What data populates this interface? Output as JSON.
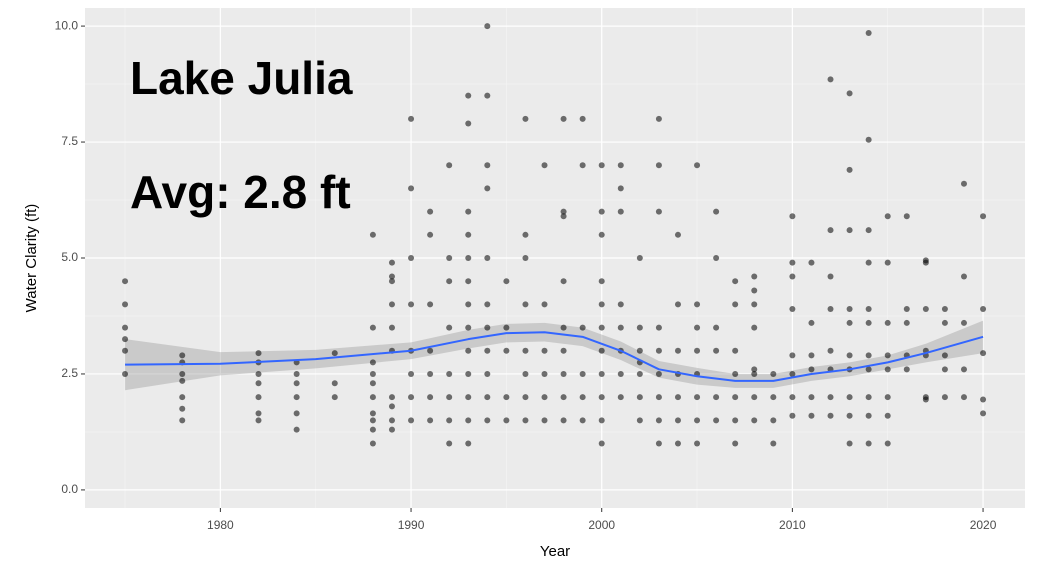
{
  "chart_data": {
    "type": "scatter",
    "xlabel": "Year",
    "ylabel": "Water Clarity (ft)",
    "annotations": [
      "Lake Julia",
      "Avg: 2.8 ft"
    ],
    "xlim": [
      1972.9,
      2022.2
    ],
    "ylim": [
      -0.39,
      10.39
    ],
    "xticks": [
      1980,
      1990,
      2000,
      2010,
      2020
    ],
    "yticks": [
      {
        "value": 0,
        "label": "0.0"
      },
      2.5,
      {
        "value": 5,
        "label": "5.0"
      },
      7.5,
      {
        "value": 10,
        "label": "10.0"
      }
    ],
    "grid": true,
    "color": "#000000",
    "smooth_color": "#3366ff",
    "band_color": "#999999",
    "x": [
      1975,
      1975,
      1975,
      1975,
      1975,
      1975,
      1978,
      1978,
      1978,
      1978,
      1978,
      1978,
      1978,
      1982,
      1982,
      1982,
      1982,
      1982,
      1982,
      1982,
      1984,
      1984,
      1984,
      1984,
      1984,
      1984,
      1986,
      1986,
      1986,
      1988,
      1988,
      1988,
      1988,
      1988,
      1988,
      1988,
      1988,
      1988,
      1988,
      1989,
      1989,
      1989,
      1989,
      1989,
      1989,
      1989,
      1989,
      1989,
      1989,
      1990,
      1990,
      1990,
      1990,
      1990,
      1990,
      1990,
      1990,
      1991,
      1991,
      1991,
      1991,
      1991,
      1991,
      1991,
      1992,
      1992,
      1992,
      1992,
      1992,
      1992,
      1992,
      1992,
      1993,
      1993,
      1993,
      1993,
      1993,
      1993,
      1993,
      1993,
      1993,
      1993,
      1993,
      1993,
      1993,
      1994,
      1994,
      1994,
      1994,
      1994,
      1994,
      1994,
      1994,
      1994,
      1994,
      1994,
      1995,
      1995,
      1995,
      1995,
      1995,
      1996,
      1996,
      1996,
      1996,
      1996,
      1996,
      1996,
      1996,
      1997,
      1997,
      1997,
      1997,
      1997,
      1997,
      1998,
      1998,
      1998,
      1998,
      1998,
      1998,
      1998,
      1998,
      1998,
      1999,
      1999,
      1999,
      1999,
      1999,
      1999,
      2000,
      2000,
      2000,
      2000,
      2000,
      2000,
      2000,
      2000,
      2000,
      2000,
      2000,
      2001,
      2001,
      2001,
      2001,
      2001,
      2001,
      2001,
      2001,
      2002,
      2002,
      2002,
      2002,
      2002,
      2002,
      2002,
      2003,
      2003,
      2003,
      2003,
      2003,
      2003,
      2003,
      2003,
      2003,
      2004,
      2004,
      2004,
      2004,
      2004,
      2004,
      2004,
      2005,
      2005,
      2005,
      2005,
      2005,
      2005,
      2005,
      2005,
      2006,
      2006,
      2006,
      2006,
      2006,
      2006,
      2007,
      2007,
      2007,
      2007,
      2007,
      2007,
      2007,
      2008,
      2008,
      2008,
      2008,
      2008,
      2008,
      2008,
      2008,
      2009,
      2009,
      2009,
      2009,
      2010,
      2010,
      2010,
      2010,
      2010,
      2010,
      2010,
      2010,
      2011,
      2011,
      2011,
      2011,
      2011,
      2011,
      2012,
      2012,
      2012,
      2012,
      2012,
      2012,
      2012,
      2012,
      2013,
      2013,
      2013,
      2013,
      2013,
      2013,
      2013,
      2013,
      2013,
      2013,
      2014,
      2014,
      2014,
      2014,
      2014,
      2014,
      2014,
      2014,
      2014,
      2014,
      2014,
      2015,
      2015,
      2015,
      2015,
      2015,
      2015,
      2015,
      2015,
      2016,
      2016,
      2016,
      2016,
      2016,
      2017,
      2017,
      2017,
      2017,
      2017,
      2017,
      2017,
      2018,
      2018,
      2018,
      2018,
      2018,
      2019,
      2019,
      2019,
      2019,
      2019,
      2020,
      2020,
      2020,
      2020,
      2020
    ],
    "y": [
      4.5,
      4,
      3.5,
      3.25,
      3,
      2.5,
      2.9,
      2.75,
      2.5,
      2.35,
      2,
      1.75,
      1.5,
      2.95,
      2.75,
      2.5,
      2.3,
      2,
      1.65,
      1.5,
      2.75,
      2.5,
      2.3,
      2,
      1.65,
      1.3,
      2.95,
      2.3,
      2,
      5.5,
      3.5,
      2.75,
      2.5,
      2.3,
      2,
      1.65,
      1.5,
      1.3,
      1,
      4.9,
      4.6,
      4.5,
      4,
      3.5,
      3,
      2,
      1.8,
      1.5,
      1.3,
      8,
      6.5,
      5,
      4,
      3,
      2.5,
      2,
      1.5,
      6,
      5.5,
      4,
      3,
      2.5,
      2,
      1.5,
      7,
      5,
      4.5,
      3.5,
      2.5,
      2,
      1.5,
      1,
      8.5,
      7.9,
      6,
      5.5,
      5,
      4.5,
      4,
      3.5,
      3,
      2.5,
      2,
      1.5,
      1,
      10,
      8.5,
      7,
      6.5,
      5,
      4,
      3.5,
      3,
      2.5,
      2,
      1.5,
      4.5,
      3.5,
      3,
      2,
      1.5,
      8,
      5.5,
      5,
      4,
      3,
      2.5,
      2,
      1.5,
      7,
      4,
      3,
      2.5,
      2,
      1.5,
      8,
      6,
      5.9,
      4.5,
      3.5,
      3,
      2.5,
      2,
      1.5,
      8,
      7,
      3.5,
      2.5,
      2,
      1.5,
      7,
      6,
      5.5,
      4.5,
      4,
      3.5,
      3,
      2.5,
      2,
      1.5,
      1,
      7,
      6.5,
      6,
      4,
      3.5,
      3,
      2.5,
      2,
      5,
      3.5,
      3,
      2.75,
      2.5,
      2,
      1.5,
      8,
      7,
      6,
      3.5,
      3,
      2.5,
      2,
      1.5,
      1,
      5.5,
      4,
      3,
      2.5,
      2,
      1.5,
      1,
      7,
      4,
      3.5,
      3,
      2.5,
      2,
      1.5,
      1,
      6,
      5,
      3.5,
      3,
      2,
      1.5,
      4.5,
      4,
      3,
      2.5,
      2,
      1.5,
      1,
      4.6,
      4.3,
      4,
      3.5,
      2.6,
      2.5,
      2,
      1.5,
      2.5,
      2,
      1.5,
      1,
      5.9,
      4.9,
      4.6,
      3.9,
      2.9,
      2.5,
      2,
      1.6,
      4.9,
      3.6,
      2.9,
      2.6,
      2,
      1.6,
      8.85,
      5.6,
      4.6,
      3.9,
      3,
      2.6,
      2,
      1.6,
      8.55,
      6.9,
      5.6,
      3.9,
      3.6,
      2.9,
      2.6,
      2,
      1.6,
      1,
      9.85,
      7.55,
      5.6,
      4.9,
      3.9,
      3.6,
      2.9,
      2.6,
      2,
      1.6,
      1,
      5.9,
      4.9,
      3.6,
      2.9,
      2.6,
      2,
      1.6,
      1,
      5.9,
      3.9,
      3.6,
      2.9,
      2.6,
      4.95,
      4.9,
      3.9,
      3,
      2.9,
      2,
      1.95,
      3.9,
      3.6,
      2.9,
      2.6,
      2,
      6.6,
      4.6,
      3.6,
      2.6,
      2,
      5.9,
      3.9,
      2.95,
      1.95,
      1.65
    ],
    "smooth": {
      "x": [
        1975,
        1980,
        1985,
        1990,
        1993,
        1995,
        1997,
        1999,
        2001,
        2003,
        2005,
        2007,
        2009,
        2011,
        2013,
        2015,
        2017,
        2020
      ],
      "y": [
        2.7,
        2.72,
        2.82,
        3.0,
        3.25,
        3.38,
        3.4,
        3.3,
        3.0,
        2.6,
        2.45,
        2.35,
        2.35,
        2.5,
        2.6,
        2.75,
        2.95,
        3.3
      ],
      "lower": [
        2.15,
        2.47,
        2.62,
        2.82,
        3.05,
        3.18,
        3.2,
        3.1,
        2.8,
        2.42,
        2.27,
        2.2,
        2.2,
        2.35,
        2.45,
        2.6,
        2.75,
        2.95
      ],
      "upper": [
        3.25,
        2.97,
        3.02,
        3.18,
        3.45,
        3.58,
        3.6,
        3.5,
        3.2,
        2.78,
        2.63,
        2.5,
        2.5,
        2.65,
        2.75,
        2.9,
        3.15,
        3.65
      ]
    }
  }
}
